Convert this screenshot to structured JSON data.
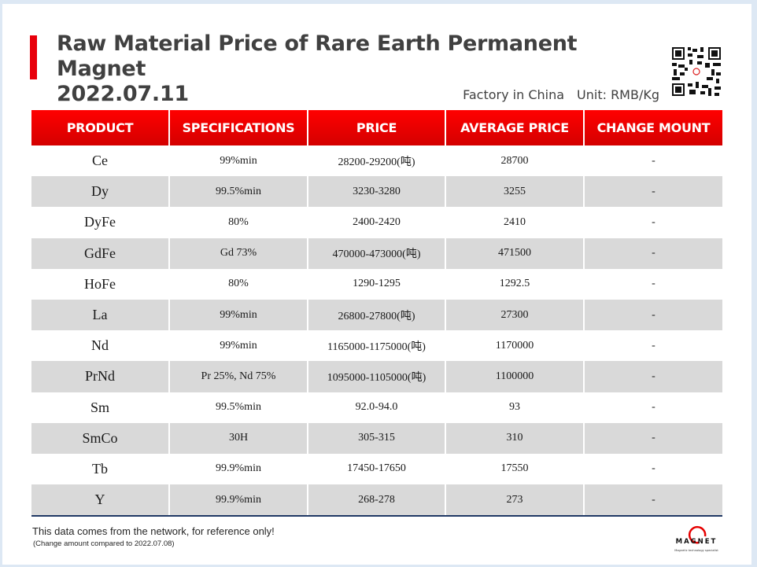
{
  "header": {
    "title_line1": "Raw Material Price of Rare Earth Permanent Magnet",
    "title_line2": "2022.07.11",
    "location": "Factory in China",
    "unit": "Unit: RMB/Kg",
    "accent_color": "#e8000b"
  },
  "table": {
    "columns": [
      "PRODUCT",
      "SPECIFICATIONS",
      "PRICE",
      "AVERAGE PRICE",
      "CHANGE MOUNT"
    ],
    "rows": [
      {
        "product": "Ce",
        "spec": "99%min",
        "price": "28200-29200(吨)",
        "avg": "28700",
        "change": "-"
      },
      {
        "product": "Dy",
        "spec": "99.5%min",
        "price": "3230-3280",
        "avg": "3255",
        "change": "-"
      },
      {
        "product": "DyFe",
        "spec": "80%",
        "price": "2400-2420",
        "avg": "2410",
        "change": "-"
      },
      {
        "product": "GdFe",
        "spec": "Gd 73%",
        "price": "470000-473000(吨)",
        "avg": "471500",
        "change": "-"
      },
      {
        "product": "HoFe",
        "spec": "80%",
        "price": "1290-1295",
        "avg": "1292.5",
        "change": "-"
      },
      {
        "product": "La",
        "spec": "99%min",
        "price": "26800-27800(吨)",
        "avg": "27300",
        "change": "-"
      },
      {
        "product": "Nd",
        "spec": "99%min",
        "price": "1165000-1175000(吨)",
        "avg": "1170000",
        "change": "-"
      },
      {
        "product": "PrNd",
        "spec": "Pr 25%, Nd 75%",
        "price": "1095000-1105000(吨)",
        "avg": "1100000",
        "change": "-"
      },
      {
        "product": "Sm",
        "spec": "99.5%min",
        "price": "92.0-94.0",
        "avg": "93",
        "change": "-"
      },
      {
        "product": "SmCo",
        "spec": "30H",
        "price": "305-315",
        "avg": "310",
        "change": "-"
      },
      {
        "product": "Tb",
        "spec": "99.9%min",
        "price": "17450-17650",
        "avg": "17550",
        "change": "-"
      },
      {
        "product": "Y",
        "spec": "99.9%min",
        "price": "268-278",
        "avg": "273",
        "change": "-"
      }
    ]
  },
  "footer": {
    "disclaimer": "This data comes from the network, for reference only!",
    "comparison": "(Change amount compared to 2022.07.08)",
    "logo_text": "MAGNET",
    "logo_tagline": "Magnetic technology specialist"
  }
}
